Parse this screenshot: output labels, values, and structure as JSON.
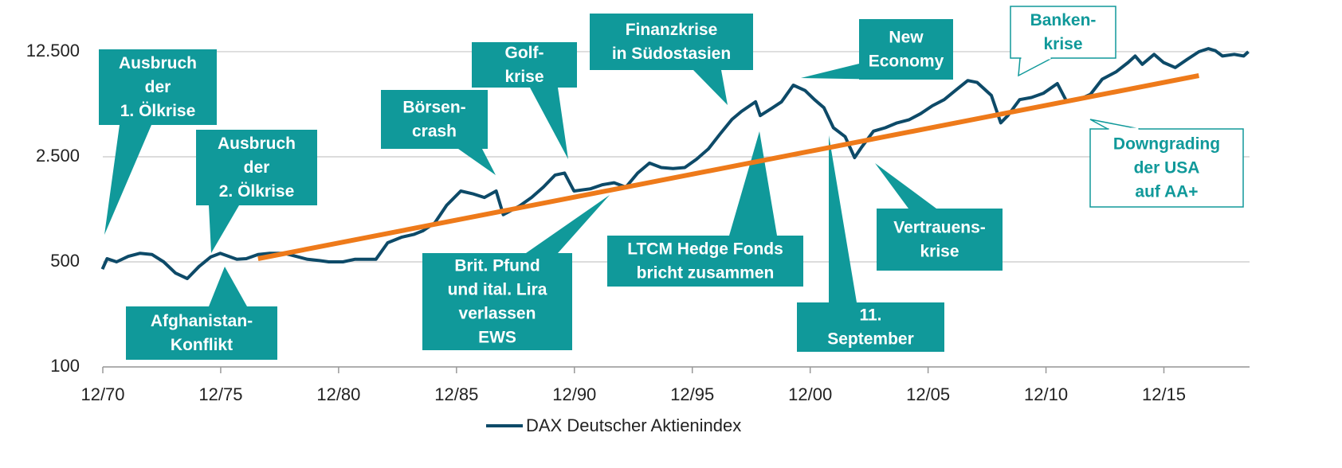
{
  "chart_data": {
    "type": "line",
    "ylog": true,
    "grid": true,
    "xlim": [
      1970.917,
      2019.55
    ],
    "ylim": [
      100,
      15000
    ],
    "xticks": [
      {
        "value": 1970.917,
        "label": "12/70"
      },
      {
        "value": 1975.917,
        "label": "12/75"
      },
      {
        "value": 1980.917,
        "label": "12/80"
      },
      {
        "value": 1985.917,
        "label": "12/85"
      },
      {
        "value": 1990.917,
        "label": "12/90"
      },
      {
        "value": 1995.917,
        "label": "12/95"
      },
      {
        "value": 2000.917,
        "label": "12/00"
      },
      {
        "value": 2005.917,
        "label": "12/05"
      },
      {
        "value": 2010.917,
        "label": "12/10"
      },
      {
        "value": 2015.917,
        "label": "12/15"
      }
    ],
    "yticks": [
      100,
      500,
      {
        "value": 2500,
        "label": "2.500"
      },
      {
        "value": 12500,
        "label": "12.500"
      }
    ],
    "x": [
      1970.9,
      1971.1,
      1971.5,
      1972.0,
      1972.5,
      1973.0,
      1973.5,
      1974.0,
      1974.5,
      1975.0,
      1975.5,
      1975.9,
      1976.6,
      1977.0,
      1977.5,
      1978.0,
      1978.6,
      1979.1,
      1979.6,
      1980.1,
      1980.5,
      1981.1,
      1981.6,
      1982.0,
      1982.5,
      1983.0,
      1983.6,
      1984.1,
      1984.5,
      1985.0,
      1985.5,
      1986.1,
      1986.6,
      1987.1,
      1987.6,
      1987.9,
      1988.6,
      1989.1,
      1989.6,
      1990.1,
      1990.5,
      1990.9,
      1991.6,
      1992.1,
      1992.6,
      1993.1,
      1993.6,
      1994.1,
      1994.6,
      1995.1,
      1995.6,
      1996.1,
      1996.6,
      1997.1,
      1997.6,
      1998.0,
      1998.6,
      1998.8,
      1999.3,
      1999.7,
      2000.2,
      2000.7,
      2001.1,
      2001.5,
      2001.9,
      2002.4,
      2002.8,
      2003.1,
      2003.6,
      2004.1,
      2004.6,
      2005.1,
      2005.6,
      2006.1,
      2006.6,
      2007.1,
      2007.6,
      2008.0,
      2008.6,
      2009.0,
      2009.3,
      2009.8,
      2010.3,
      2010.8,
      2011.4,
      2011.8,
      2012.3,
      2012.8,
      2013.3,
      2013.9,
      2014.4,
      2014.7,
      2015.0,
      2015.5,
      2015.9,
      2016.4,
      2016.9,
      2017.4,
      2017.8,
      2018.1,
      2018.4,
      2018.9,
      2019.3,
      2019.5
    ],
    "series": [
      {
        "name": "DAX Deutscher Aktienindex",
        "color": "#0d4a68",
        "values": [
          447,
          525,
          500,
          544,
          570,
          560,
          500,
          421,
          387,
          466,
          540,
          570,
          520,
          525,
          560,
          570,
          570,
          545,
          520,
          510,
          500,
          500,
          520,
          520,
          520,
          670,
          730,
          760,
          805,
          910,
          1190,
          1480,
          1420,
          1340,
          1480,
          1030,
          1180,
          1340,
          1570,
          1890,
          1950,
          1480,
          1530,
          1630,
          1680,
          1570,
          1950,
          2270,
          2120,
          2090,
          2120,
          2410,
          2820,
          3550,
          4430,
          5010,
          5800,
          4700,
          5270,
          5800,
          7490,
          6900,
          6000,
          5300,
          3900,
          3400,
          2470,
          2900,
          3700,
          3900,
          4200,
          4400,
          4840,
          5460,
          6000,
          6950,
          8040,
          7800,
          6400,
          4200,
          4700,
          6000,
          6200,
          6600,
          7670,
          5800,
          6000,
          6500,
          8200,
          9200,
          10600,
          11700,
          10300,
          12000,
          10600,
          9800,
          11100,
          12500,
          13100,
          12700,
          11700,
          12000,
          11700,
          12500
        ]
      },
      {
        "color": "#ee7a1a",
        "x": [
          1977.5,
          2017.4
        ],
        "values": [
          525,
          8670
        ]
      }
    ],
    "annotations": [
      {
        "text": [
          "Ausbruch",
          "der",
          "1. Ölkrise"
        ]
      },
      {
        "text": [
          "Ausbruch",
          "der",
          "2. Ölkrise"
        ]
      },
      {
        "text": [
          "Afghanistan-",
          "Konflikt"
        ]
      },
      {
        "text": [
          "Börsen-",
          "crash"
        ]
      },
      {
        "text": [
          "Golf-",
          "krise"
        ]
      },
      {
        "text": [
          "Brit. Pfund",
          "und ital. Lira",
          "verlassen",
          "EWS"
        ]
      },
      {
        "text": [
          "Finanzkrise",
          "in Südostasien"
        ]
      },
      {
        "text": [
          "LTCM Hedge Fonds",
          "bricht zusammen"
        ]
      },
      {
        "text": [
          "New",
          "Economy"
        ]
      },
      {
        "text": [
          "11.",
          "September"
        ]
      },
      {
        "text": [
          "Vertrauens-",
          "krise"
        ]
      },
      {
        "text": [
          "Banken-",
          "krise"
        ]
      },
      {
        "text": [
          "Downgrading",
          "der USA",
          "auf AA+"
        ]
      }
    ]
  }
}
